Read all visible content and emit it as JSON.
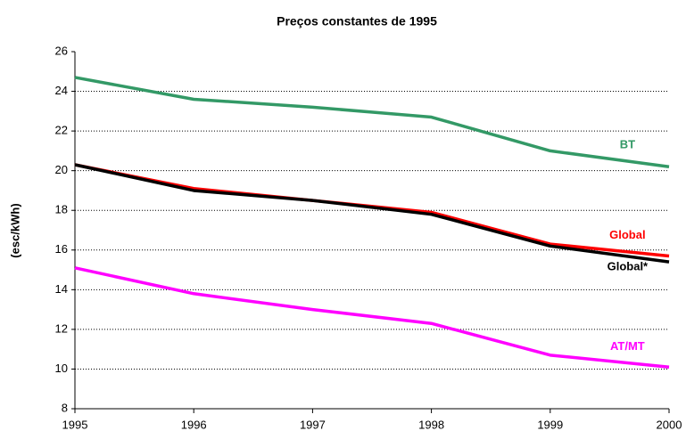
{
  "chart_data": {
    "type": "line",
    "title": "Preços constantes de 1995",
    "y_label": "(esc/kWh)",
    "x": [
      1995,
      1996,
      1997,
      1998,
      1999,
      2000
    ],
    "xlim": [
      1995,
      2000
    ],
    "xticks": [
      1995,
      1996,
      1997,
      1998,
      1999,
      2000
    ],
    "ylim": [
      8,
      26
    ],
    "yticks": [
      8,
      10,
      12,
      14,
      16,
      18,
      20,
      22,
      24,
      26
    ],
    "grid": true,
    "series": [
      {
        "name": "BT",
        "color": "#339966",
        "values": [
          24.7,
          23.6,
          23.2,
          22.7,
          21.0,
          20.2
        ]
      },
      {
        "name": "Global",
        "color": "#ff0000",
        "values": [
          20.3,
          19.1,
          18.5,
          17.9,
          16.3,
          15.7
        ]
      },
      {
        "name": "Global*",
        "color": "#000000",
        "values": [
          20.3,
          19.0,
          18.5,
          17.8,
          16.2,
          15.4
        ]
      },
      {
        "name": "AT/MT",
        "color": "#ff00ff",
        "values": [
          15.1,
          13.8,
          13.0,
          12.3,
          10.7,
          10.1
        ]
      }
    ]
  }
}
